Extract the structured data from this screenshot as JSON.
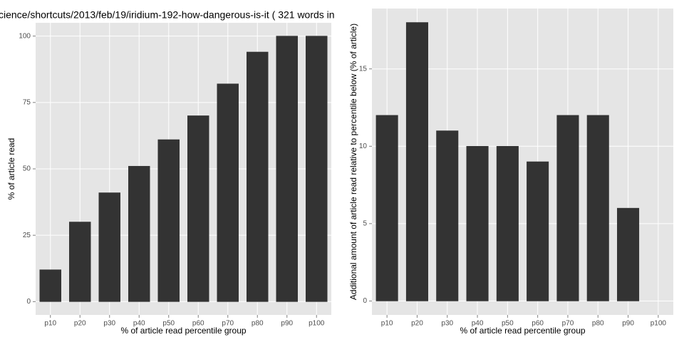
{
  "chart_data": [
    {
      "type": "bar",
      "title": "cience/shortcuts/2013/feb/19/iridium-192-how-dangerous-is-it ( 321 words in",
      "x_label": "% of article read percentile group",
      "y_label": "% of article read",
      "categories": [
        "p10",
        "p20",
        "p30",
        "p40",
        "p50",
        "p60",
        "p70",
        "p80",
        "p90",
        "p100"
      ],
      "values": [
        12,
        30,
        41,
        51,
        61,
        70,
        82,
        94,
        100,
        100
      ],
      "color": "#333333",
      "ylim": [
        -5,
        105
      ],
      "yticks": [
        0,
        25,
        50,
        75,
        100
      ],
      "grid": true
    },
    {
      "type": "bar",
      "x_label": "% of article read percentile group",
      "y_label": "Additional amount of article read relative to percentile below (% of article)",
      "categories": [
        "p10",
        "p20",
        "p30",
        "p40",
        "p50",
        "p60",
        "p70",
        "p80",
        "p90",
        "p100"
      ],
      "values": [
        12,
        18,
        11,
        10,
        10,
        9,
        12,
        12,
        6,
        0
      ],
      "color": "#333333",
      "ylim": [
        -0.9,
        18.9
      ],
      "yticks": [
        0,
        5,
        10,
        15
      ],
      "grid": true
    }
  ]
}
